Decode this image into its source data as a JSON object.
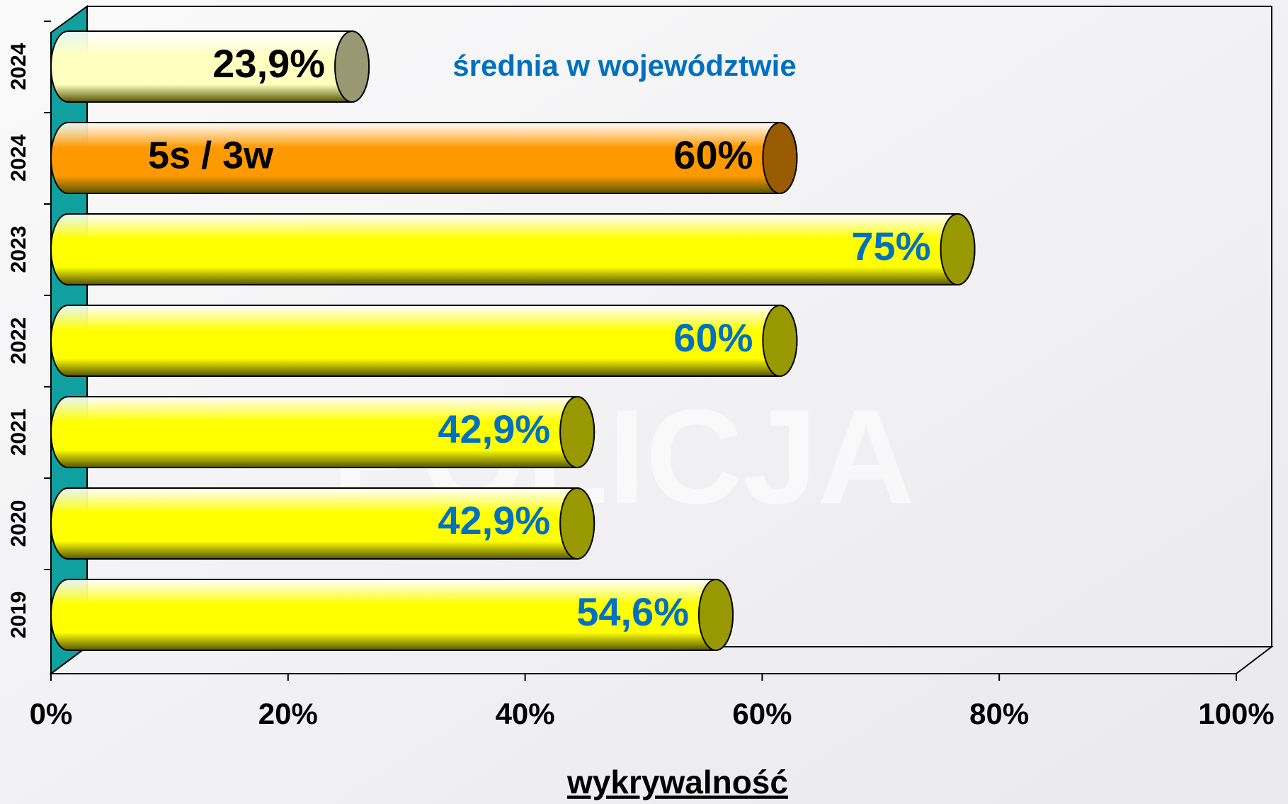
{
  "chart_data": {
    "type": "bar",
    "orientation": "horizontal",
    "categories": [
      "2024",
      "2024",
      "2023",
      "2022",
      "2021",
      "2020",
      "2019"
    ],
    "values": [
      23.9,
      60,
      75,
      60,
      42.9,
      42.9,
      54.6
    ],
    "value_labels": [
      "23,9%",
      "60%",
      "75%",
      "60%",
      "42,9%",
      "42,9%",
      "54,6%"
    ],
    "colors": [
      "#ffffc0",
      "#ff9900",
      "#ffff00",
      "#ffff00",
      "#ffff00",
      "#ffff00",
      "#ffff00"
    ],
    "label_colors": [
      "#000000",
      "#000000",
      "#0070c0",
      "#0070c0",
      "#0070c0",
      "#0070c0",
      "#0070c0"
    ],
    "xlim": [
      0,
      100
    ],
    "xticks": [
      {
        "value": 0,
        "label": "0%"
      },
      {
        "value": 20,
        "label": "20%"
      },
      {
        "value": 40,
        "label": "40%"
      },
      {
        "value": 60,
        "label": "60%"
      },
      {
        "value": 80,
        "label": "80%"
      },
      {
        "value": 100,
        "label": "100%"
      }
    ],
    "xlabel": "wykrywalność",
    "annotations": [
      "średnia w województwie",
      "5s / 3w"
    ]
  }
}
